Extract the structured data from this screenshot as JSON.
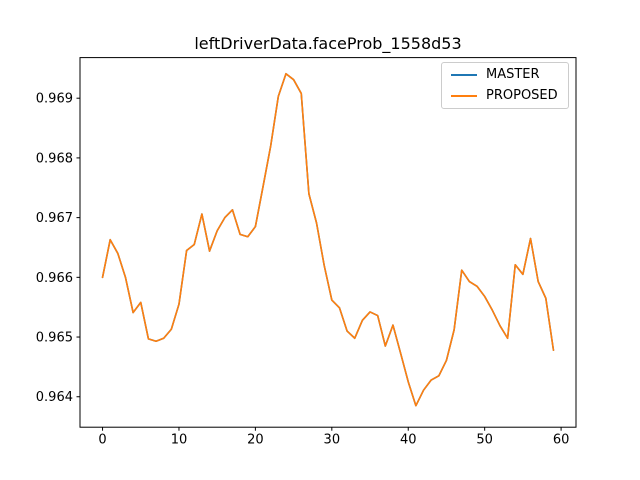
{
  "chart_data": {
    "type": "line",
    "title": "leftDriverData.faceProb_1558d53",
    "xlabel": "",
    "ylabel": "",
    "grid": false,
    "legend_position": "upper right",
    "xlim": [
      -2.95,
      61.95
    ],
    "ylim": [
      0.96349,
      0.96968
    ],
    "xticks": [
      0,
      10,
      20,
      30,
      40,
      50,
      60
    ],
    "yticks": [
      0.964,
      0.965,
      0.966,
      0.967,
      0.968,
      0.969
    ],
    "x": [
      0,
      1,
      2,
      3,
      4,
      5,
      6,
      7,
      8,
      9,
      10,
      11,
      12,
      13,
      14,
      15,
      16,
      17,
      18,
      19,
      20,
      21,
      22,
      23,
      24,
      25,
      26,
      27,
      28,
      29,
      30,
      31,
      32,
      33,
      34,
      35,
      36,
      37,
      38,
      39,
      40,
      41,
      42,
      43,
      44,
      45,
      46,
      47,
      48,
      49,
      50,
      51,
      52,
      53,
      54,
      55,
      56,
      57,
      58,
      59
    ],
    "series": [
      {
        "name": "MASTER",
        "color": "#1f77b4",
        "values": [
          0.966,
          0.96663,
          0.9664,
          0.966,
          0.96541,
          0.96558,
          0.96497,
          0.96493,
          0.96498,
          0.96513,
          0.96555,
          0.96645,
          0.96655,
          0.96706,
          0.96644,
          0.96678,
          0.967,
          0.96713,
          0.96672,
          0.96668,
          0.96685,
          0.96752,
          0.9682,
          0.96903,
          0.96941,
          0.96931,
          0.96908,
          0.9674,
          0.96691,
          0.9662,
          0.96562,
          0.96549,
          0.9651,
          0.96498,
          0.96528,
          0.96542,
          0.96536,
          0.96485,
          0.9652,
          0.96473,
          0.96425,
          0.96385,
          0.96411,
          0.96428,
          0.96435,
          0.96461,
          0.96512,
          0.96612,
          0.96593,
          0.96585,
          0.96568,
          0.96545,
          0.96519,
          0.96498,
          0.96621,
          0.96605,
          0.96665,
          0.96593,
          0.96565,
          0.96478
        ]
      },
      {
        "name": "PROPOSED",
        "color": "#ff7f0e",
        "values": [
          0.966,
          0.96663,
          0.9664,
          0.966,
          0.96541,
          0.96558,
          0.96497,
          0.96493,
          0.96498,
          0.96513,
          0.96555,
          0.96645,
          0.96655,
          0.96706,
          0.96644,
          0.96678,
          0.967,
          0.96713,
          0.96672,
          0.96668,
          0.96685,
          0.96752,
          0.9682,
          0.96903,
          0.96941,
          0.96931,
          0.96908,
          0.9674,
          0.96691,
          0.9662,
          0.96562,
          0.96549,
          0.9651,
          0.96498,
          0.96528,
          0.96542,
          0.96536,
          0.96485,
          0.9652,
          0.96473,
          0.96425,
          0.96385,
          0.96411,
          0.96428,
          0.96435,
          0.96461,
          0.96512,
          0.96612,
          0.96593,
          0.96585,
          0.96568,
          0.96545,
          0.96519,
          0.96498,
          0.96621,
          0.96605,
          0.96665,
          0.96593,
          0.96565,
          0.96478
        ]
      }
    ]
  }
}
